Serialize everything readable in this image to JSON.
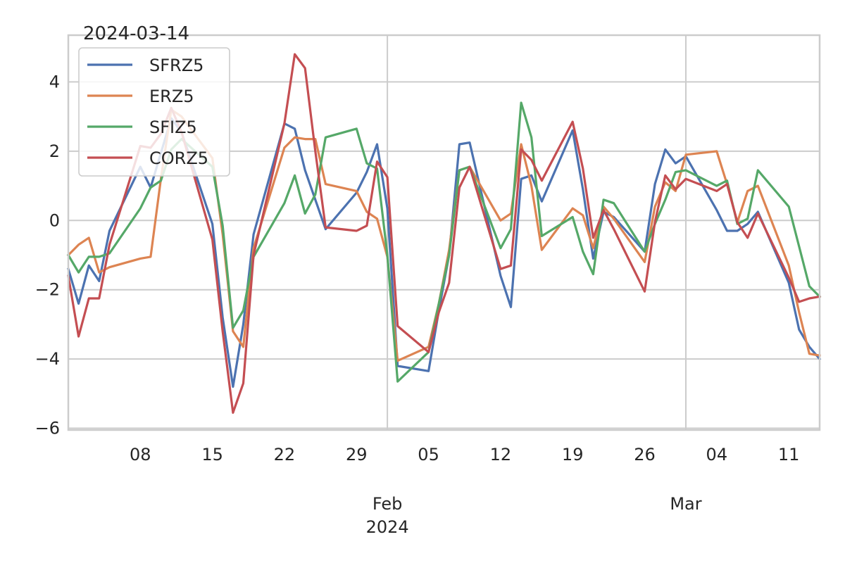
{
  "chart_data": {
    "type": "line",
    "title": "2024-03-14",
    "xlabel": "",
    "ylabel": "",
    "x": [
      "2024-01-01",
      "2024-01-02",
      "2024-01-03",
      "2024-01-04",
      "2024-01-05",
      "2024-01-08",
      "2024-01-09",
      "2024-01-10",
      "2024-01-11",
      "2024-01-12",
      "2024-01-15",
      "2024-01-16",
      "2024-01-17",
      "2024-01-18",
      "2024-01-19",
      "2024-01-22",
      "2024-01-23",
      "2024-01-24",
      "2024-01-25",
      "2024-01-26",
      "2024-01-29",
      "2024-01-30",
      "2024-01-31",
      "2024-02-01",
      "2024-02-02",
      "2024-02-05",
      "2024-02-06",
      "2024-02-07",
      "2024-02-08",
      "2024-02-09",
      "2024-02-12",
      "2024-02-13",
      "2024-02-14",
      "2024-02-15",
      "2024-02-16",
      "2024-02-19",
      "2024-02-20",
      "2024-02-21",
      "2024-02-22",
      "2024-02-23",
      "2024-02-26",
      "2024-02-27",
      "2024-02-28",
      "2024-02-29",
      "2024-03-01",
      "2024-03-04",
      "2024-03-05",
      "2024-03-06",
      "2024-03-07",
      "2024-03-08",
      "2024-03-11",
      "2024-03-12",
      "2024-03-13",
      "2024-03-14"
    ],
    "series": [
      {
        "name": "SFRZ5",
        "color": "#4c72b0",
        "values": [
          -1.4,
          -2.4,
          -1.3,
          -1.75,
          -0.3,
          1.55,
          0.95,
          1.95,
          2.95,
          2.55,
          -0.1,
          -2.8,
          -4.8,
          -3.0,
          -0.4,
          2.8,
          2.65,
          1.45,
          0.6,
          -0.25,
          0.8,
          1.4,
          2.2,
          0.35,
          -4.2,
          -4.35,
          -2.6,
          -1.0,
          2.2,
          2.25,
          -1.6,
          -2.5,
          1.2,
          1.3,
          0.55,
          2.6,
          0.9,
          -1.1,
          0.25,
          0.1,
          -0.9,
          1.05,
          2.05,
          1.65,
          1.85,
          0.3,
          -0.3,
          -0.3,
          -0.1,
          0.25,
          -1.8,
          -3.15,
          -3.65,
          -4.0
        ]
      },
      {
        "name": "ERZ5",
        "color": "#dd8452",
        "values": [
          -1.0,
          -0.7,
          -0.5,
          -1.5,
          -1.35,
          -1.1,
          -1.05,
          1.2,
          3.2,
          3.0,
          1.8,
          -0.4,
          -3.2,
          -3.65,
          -0.8,
          2.1,
          2.4,
          2.35,
          2.35,
          1.05,
          0.85,
          0.25,
          0.05,
          -1.05,
          -4.05,
          -3.65,
          -2.4,
          -0.85,
          1.45,
          1.55,
          0.0,
          0.2,
          2.2,
          1.0,
          -0.85,
          0.35,
          0.15,
          -0.8,
          0.4,
          0.05,
          -1.2,
          0.4,
          1.1,
          0.85,
          1.9,
          2.0,
          1.05,
          -0.05,
          0.85,
          1.0,
          -1.3,
          -2.65,
          -3.85,
          -3.9
        ]
      },
      {
        "name": "SFIZ5",
        "color": "#55a868",
        "values": [
          -1.0,
          -1.5,
          -1.05,
          -1.05,
          -0.95,
          0.35,
          0.95,
          1.15,
          2.05,
          2.35,
          1.55,
          -0.15,
          -3.1,
          -2.6,
          -1.05,
          0.5,
          1.3,
          0.2,
          0.75,
          2.4,
          2.65,
          1.65,
          1.5,
          -1.0,
          -4.65,
          -3.8,
          -2.4,
          -1.0,
          1.45,
          1.55,
          -0.8,
          -0.25,
          3.4,
          2.4,
          -0.45,
          0.1,
          -0.9,
          -1.55,
          0.6,
          0.5,
          -0.9,
          -0.1,
          0.6,
          1.4,
          1.45,
          1.0,
          1.15,
          -0.1,
          0.05,
          1.45,
          0.4,
          -0.75,
          -1.9,
          -2.2
        ]
      },
      {
        "name": "CORZ5",
        "color": "#c44e52",
        "values": [
          -1.6,
          -3.35,
          -2.25,
          -2.25,
          -0.7,
          2.15,
          2.1,
          2.5,
          3.25,
          2.55,
          -0.55,
          -3.2,
          -5.55,
          -4.7,
          -1.0,
          2.8,
          4.8,
          4.4,
          2.0,
          -0.2,
          -0.3,
          -0.15,
          1.7,
          1.25,
          -3.05,
          -3.8,
          -2.65,
          -1.8,
          0.95,
          1.55,
          -1.4,
          -1.3,
          2.05,
          1.75,
          1.15,
          2.85,
          1.5,
          -0.5,
          0.3,
          -0.25,
          -2.05,
          -0.05,
          1.3,
          0.9,
          1.2,
          0.85,
          1.05,
          -0.05,
          -0.5,
          0.2,
          -1.65,
          -2.35,
          -2.25,
          -2.2
        ]
      }
    ],
    "x_ticks": [
      {
        "date": "2024-01-08",
        "label": "08",
        "sublabel": ""
      },
      {
        "date": "2024-01-15",
        "label": "15",
        "sublabel": ""
      },
      {
        "date": "2024-01-22",
        "label": "22",
        "sublabel": ""
      },
      {
        "date": "2024-01-29",
        "label": "29",
        "sublabel": ""
      },
      {
        "date": "2024-02-05",
        "label": "05",
        "sublabel": ""
      },
      {
        "date": "2024-02-12",
        "label": "12",
        "sublabel": ""
      },
      {
        "date": "2024-02-19",
        "label": "19",
        "sublabel": ""
      },
      {
        "date": "2024-02-26",
        "label": "26",
        "sublabel": ""
      },
      {
        "date": "2024-03-04",
        "label": "04",
        "sublabel": ""
      },
      {
        "date": "2024-03-11",
        "label": "11",
        "sublabel": ""
      }
    ],
    "x_major_ticks": [
      {
        "date": "2024-02-01",
        "label": "Feb",
        "sublabel": "2024"
      },
      {
        "date": "2024-03-01",
        "label": "Mar",
        "sublabel": ""
      }
    ],
    "y_ticks": [
      4,
      2,
      0,
      -2,
      -4,
      -6
    ],
    "y_tick_labels": [
      "4",
      "2",
      "0",
      "−2",
      "−4",
      "−6"
    ],
    "xlim": [
      "2024-01-01",
      "2024-03-14"
    ],
    "ylim": [
      -6.05,
      5.35
    ],
    "grid": true,
    "legend_placement": "top-left",
    "axes_edge_color": "#cccccc",
    "grid_color": "#cccccc"
  }
}
